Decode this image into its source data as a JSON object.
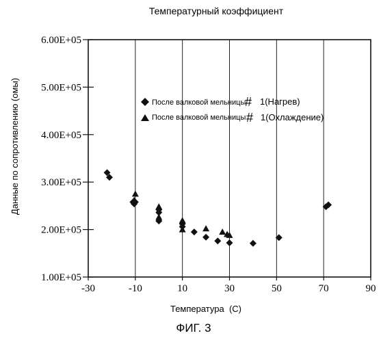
{
  "chart_data": {
    "type": "scatter",
    "title": "Температурный коэффициент",
    "xlabel": "Температура  (С)",
    "ylabel": "Данные по сопротивлению (омы)",
    "caption": "ФИГ. 3",
    "xlim": [
      -30,
      90
    ],
    "ylim": [
      100000,
      600000
    ],
    "x_ticks": [
      -30,
      -10,
      10,
      30,
      50,
      70,
      90
    ],
    "x_tick_labels": [
      "-30",
      "-10",
      "10",
      "30",
      "50",
      "70",
      "90"
    ],
    "y_ticks": [
      100000,
      200000,
      300000,
      400000,
      500000,
      600000
    ],
    "y_tick_labels": [
      "1.00E+05",
      "2.00E+05",
      "3.00E+05",
      "4.00E+05",
      "5.00E+05",
      "6.00E+05"
    ],
    "grid": "vertical",
    "legend_position": "center",
    "series": [
      {
        "name": "После валковой мельницы # 1(Нагрев)",
        "legend_text": "После валковой мельницы",
        "legend_hash": "#",
        "legend_suffix": "1(Нагрев)",
        "marker": "diamond",
        "points": [
          {
            "x": -22,
            "y": 320000
          },
          {
            "x": -21,
            "y": 310000
          },
          {
            "x": -11,
            "y": 258000
          },
          {
            "x": -10.5,
            "y": 254000
          },
          {
            "x": -10,
            "y": 258000
          },
          {
            "x": 0,
            "y": 242000
          },
          {
            "x": 0,
            "y": 236000
          },
          {
            "x": 0,
            "y": 218000
          },
          {
            "x": 10,
            "y": 212000
          },
          {
            "x": 10,
            "y": 206000
          },
          {
            "x": 15,
            "y": 195000
          },
          {
            "x": 20,
            "y": 184000
          },
          {
            "x": 25,
            "y": 176000
          },
          {
            "x": 30,
            "y": 172000
          },
          {
            "x": 40,
            "y": 171000
          },
          {
            "x": 51,
            "y": 183000
          },
          {
            "x": 71,
            "y": 248000
          },
          {
            "x": 72,
            "y": 252000
          }
        ]
      },
      {
        "name": "После валковой мельницы # 1(Охлаждение)",
        "legend_text": "После валковой мельницы",
        "legend_hash": "#",
        "legend_suffix": "1(Охлаждение)",
        "marker": "triangle",
        "points": [
          {
            "x": -10,
            "y": 275000
          },
          {
            "x": -10.5,
            "y": 262000
          },
          {
            "x": 0,
            "y": 248000
          },
          {
            "x": 0,
            "y": 226000
          },
          {
            "x": 10,
            "y": 219000
          },
          {
            "x": 10,
            "y": 200000
          },
          {
            "x": 20,
            "y": 202000
          },
          {
            "x": 27,
            "y": 195000
          },
          {
            "x": 29,
            "y": 190000
          },
          {
            "x": 30,
            "y": 188000
          }
        ]
      }
    ]
  }
}
